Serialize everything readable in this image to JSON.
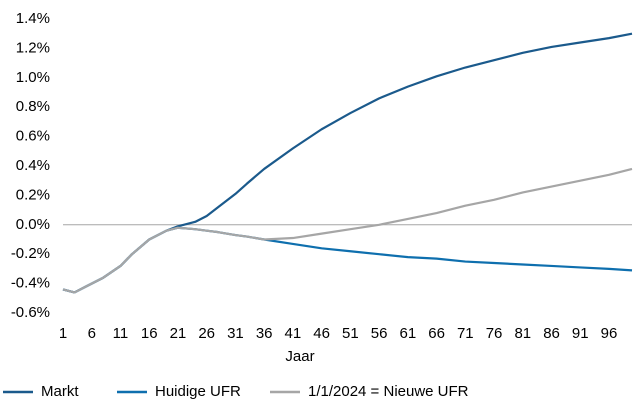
{
  "chart_data": {
    "type": "line",
    "x_label": "Jaar",
    "x": [
      1,
      3,
      5,
      8,
      11,
      13,
      16,
      19,
      21,
      24,
      26,
      28,
      31,
      33,
      36,
      41,
      46,
      51,
      56,
      61,
      66,
      71,
      76,
      81,
      86,
      91,
      96,
      100
    ],
    "series": [
      {
        "name": "Markt",
        "color": "#1b5a8c",
        "values": [
          -0.44,
          -0.46,
          -0.42,
          -0.36,
          -0.28,
          -0.2,
          -0.1,
          -0.04,
          -0.01,
          0.02,
          0.06,
          0.12,
          0.21,
          0.28,
          0.38,
          0.52,
          0.65,
          0.76,
          0.86,
          0.94,
          1.01,
          1.07,
          1.12,
          1.17,
          1.21,
          1.24,
          1.27,
          1.3
        ]
      },
      {
        "name": "Huidige UFR",
        "color": "#0e6fae",
        "values": [
          -0.44,
          -0.46,
          -0.42,
          -0.36,
          -0.28,
          -0.2,
          -0.1,
          -0.04,
          -0.02,
          -0.03,
          -0.04,
          -0.05,
          -0.07,
          -0.08,
          -0.1,
          -0.13,
          -0.16,
          -0.18,
          -0.2,
          -0.22,
          -0.23,
          -0.25,
          -0.26,
          -0.27,
          -0.28,
          -0.29,
          -0.3,
          -0.31
        ]
      },
      {
        "name": "1/1/2024 = Nieuwe UFR",
        "color": "#a6a6a6",
        "values": [
          -0.44,
          -0.46,
          -0.42,
          -0.36,
          -0.28,
          -0.2,
          -0.1,
          -0.04,
          -0.02,
          -0.03,
          -0.04,
          -0.05,
          -0.07,
          -0.08,
          -0.1,
          -0.09,
          -0.06,
          -0.03,
          0,
          0.04,
          0.08,
          0.13,
          0.17,
          0.22,
          0.26,
          0.3,
          0.34,
          0.38
        ]
      }
    ],
    "xlim": [
      1,
      100
    ],
    "xticks": [
      1,
      6,
      11,
      16,
      21,
      26,
      31,
      36,
      41,
      46,
      51,
      56,
      61,
      66,
      71,
      76,
      81,
      86,
      91,
      96
    ],
    "ylim": [
      -0.6,
      1.4
    ],
    "yticks": [
      {
        "value": -0.6,
        "label": "-0.6%"
      },
      {
        "value": -0.4,
        "label": "-0.4%"
      },
      {
        "value": -0.2,
        "label": "-0.2%"
      },
      {
        "value": 0,
        "label": "0.0%"
      },
      {
        "value": 0.2,
        "label": "0.2%"
      },
      {
        "value": 0.4,
        "label": "0.4%"
      },
      {
        "value": 0.6,
        "label": "0.6%"
      },
      {
        "value": 0.8,
        "label": "0.8%"
      },
      {
        "value": 1.0,
        "label": "1.0%"
      },
      {
        "value": 1.2,
        "label": "1.2%"
      },
      {
        "value": 1.4,
        "label": "1.4%"
      }
    ],
    "grid": false,
    "legend": "bottom"
  }
}
